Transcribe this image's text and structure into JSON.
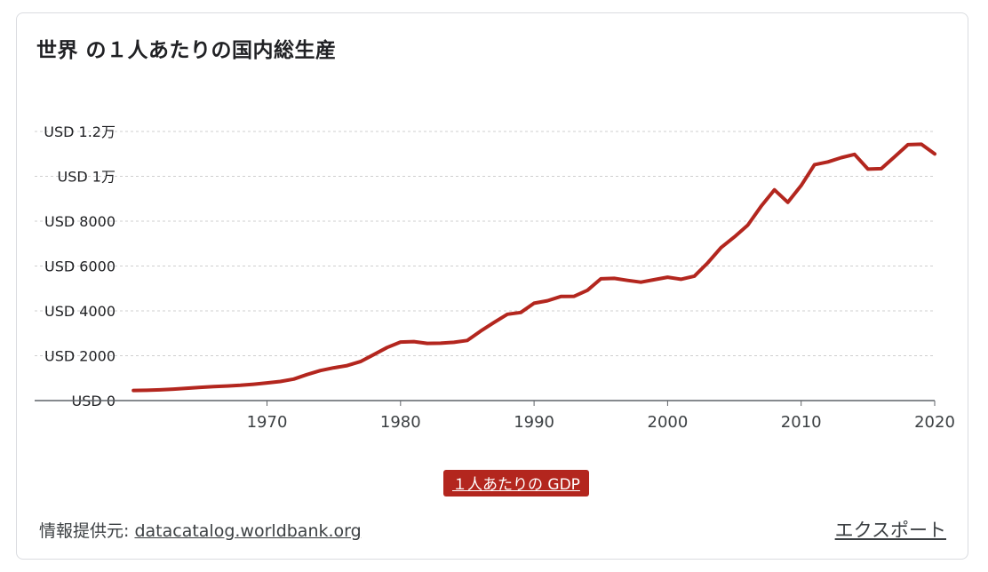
{
  "title": "世界 の１人あたりの国内総生産",
  "legend_label": "１人あたりの GDP",
  "source_label": "情報提供元:",
  "source_link": "datacatalog.worldbank.org",
  "export_label": "エクスポート",
  "colors": {
    "series": "#b3261e",
    "grid": "#cfcfcf",
    "axis": "#5f6368",
    "text": "#3c4043"
  },
  "chart_data": {
    "type": "line",
    "title": "世界 の１人あたりの国内総生産",
    "xlabel": "",
    "ylabel": "",
    "xlim": [
      1952.6,
      2020
    ],
    "ylim": [
      0,
      12000
    ],
    "grid": true,
    "y_ticks": [
      {
        "value": 0,
        "label": "USD 0"
      },
      {
        "value": 2000,
        "label": "USD 2000"
      },
      {
        "value": 4000,
        "label": "USD 4000"
      },
      {
        "value": 6000,
        "label": "USD 6000"
      },
      {
        "value": 8000,
        "label": "USD 8000"
      },
      {
        "value": 10000,
        "label": "USD 1万"
      },
      {
        "value": 12000,
        "label": "USD 1.2万"
      }
    ],
    "x_ticks": [
      {
        "value": 1970,
        "label": "1970"
      },
      {
        "value": 1980,
        "label": "1980"
      },
      {
        "value": 1990,
        "label": "1990"
      },
      {
        "value": 2000,
        "label": "2000"
      },
      {
        "value": 2010,
        "label": "2010"
      },
      {
        "value": 2020,
        "label": "2020"
      }
    ],
    "series": [
      {
        "name": "１人あたりの GDP",
        "x": [
          1960,
          1961,
          1962,
          1963,
          1964,
          1965,
          1966,
          1967,
          1968,
          1969,
          1970,
          1971,
          1972,
          1973,
          1974,
          1975,
          1976,
          1977,
          1978,
          1979,
          1980,
          1981,
          1982,
          1983,
          1984,
          1985,
          1986,
          1987,
          1988,
          1989,
          1990,
          1991,
          1992,
          1993,
          1994,
          1995,
          1996,
          1997,
          1998,
          1999,
          2000,
          2001,
          2002,
          2003,
          2004,
          2005,
          2006,
          2007,
          2008,
          2009,
          2010,
          2011,
          2012,
          2013,
          2014,
          2015,
          2016,
          2017,
          2018,
          2019,
          2020
        ],
        "values": [
          450,
          460,
          480,
          510,
          550,
          590,
          620,
          650,
          680,
          730,
          790,
          850,
          960,
          1160,
          1340,
          1460,
          1560,
          1740,
          2050,
          2370,
          2610,
          2630,
          2550,
          2560,
          2600,
          2680,
          3100,
          3480,
          3850,
          3930,
          4340,
          4450,
          4640,
          4650,
          4920,
          5430,
          5450,
          5360,
          5280,
          5390,
          5500,
          5410,
          5550,
          6140,
          6820,
          7300,
          7820,
          8660,
          9400,
          8840,
          9590,
          10520,
          10640,
          10830,
          10980,
          10320,
          10340,
          10870,
          11410,
          11430,
          11000
        ]
      }
    ]
  }
}
